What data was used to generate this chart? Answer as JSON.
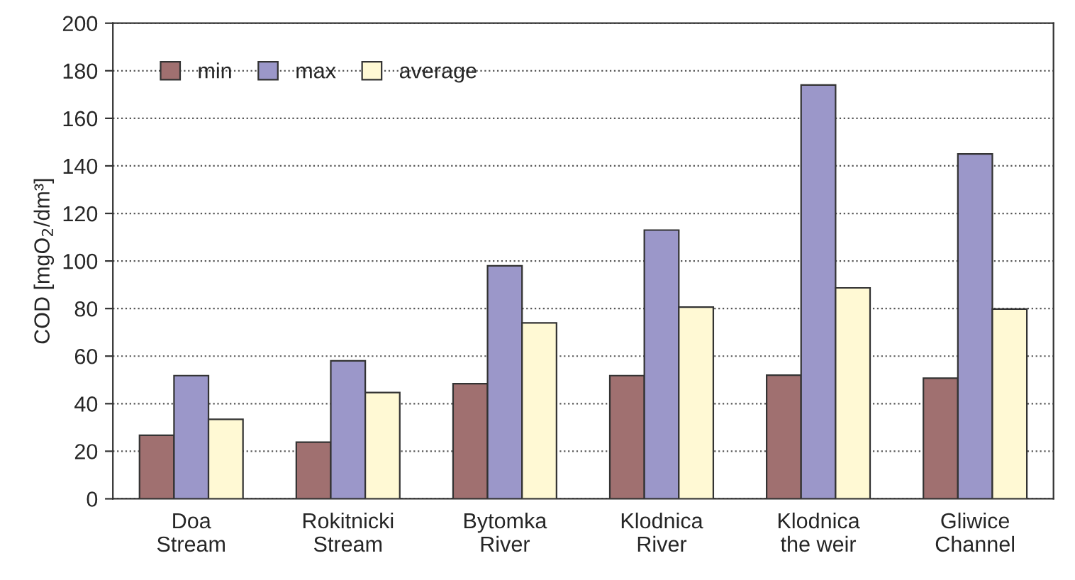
{
  "chart_data": {
    "type": "bar",
    "ylabel": "COD [mgO$_{2}$/dm³]",
    "categories": [
      "Doa\nStream",
      "Rokitnicki\nStream",
      "Bytomka\nRiver",
      "Klodnica\nRiver",
      "Klodnica\nthe weir",
      "Gliwice\nChannel"
    ],
    "series": [
      {
        "name": "min",
        "color": "#a07070",
        "values": [
          26.7,
          23.8,
          48.4,
          51.8,
          52,
          50.7
        ]
      },
      {
        "name": "max",
        "color": "#9b97c9",
        "values": [
          51.8,
          58,
          98,
          113,
          174,
          145
        ]
      },
      {
        "name": "average",
        "color": "#fff9d4",
        "values": [
          33.4,
          44.7,
          74,
          80.6,
          88.7,
          79.8
        ]
      }
    ],
    "ylim": [
      0,
      200
    ],
    "yticks": [
      0,
      20,
      40,
      60,
      80,
      100,
      120,
      140,
      160,
      180,
      200
    ],
    "grid": "y",
    "legend": "top left"
  }
}
